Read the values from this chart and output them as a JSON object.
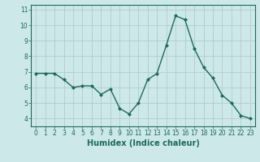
{
  "x": [
    0,
    1,
    2,
    3,
    4,
    5,
    6,
    7,
    8,
    9,
    10,
    11,
    12,
    13,
    14,
    15,
    16,
    17,
    18,
    19,
    20,
    21,
    22,
    23
  ],
  "y": [
    6.9,
    6.9,
    6.9,
    6.5,
    6.0,
    6.1,
    6.1,
    5.55,
    5.9,
    4.65,
    4.3,
    5.0,
    6.5,
    6.9,
    8.7,
    10.6,
    10.35,
    8.5,
    7.3,
    6.6,
    5.5,
    5.0,
    4.2,
    4.0
  ],
  "line_color": "#1a6b5c",
  "marker": "D",
  "markersize": 2,
  "bg_color": "#cde8e8",
  "grid_color": "#b0cccc",
  "xlabel": "Humidex (Indice chaleur)",
  "ylim": [
    3.5,
    11.3
  ],
  "xlim": [
    -0.5,
    23.5
  ],
  "yticks": [
    4,
    5,
    6,
    7,
    8,
    9,
    10,
    11
  ],
  "xticks": [
    0,
    1,
    2,
    3,
    4,
    5,
    6,
    7,
    8,
    9,
    10,
    11,
    12,
    13,
    14,
    15,
    16,
    17,
    18,
    19,
    20,
    21,
    22,
    23
  ],
  "tick_label_fontsize": 5.5,
  "xlabel_fontsize": 7
}
